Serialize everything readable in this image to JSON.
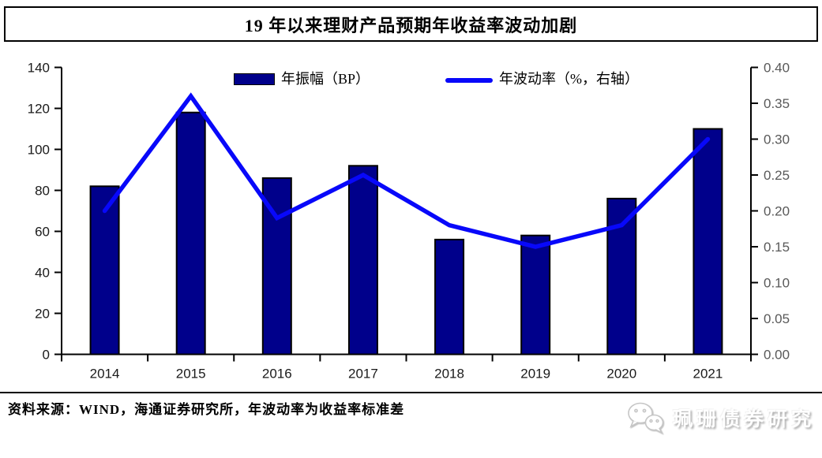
{
  "header": {
    "title": "19 年以来理财产品预期年收益率波动加剧"
  },
  "legend": {
    "bar_label": "年振幅（BP）",
    "line_label": "年波动率（%，右轴）"
  },
  "footer": {
    "source": "资料来源：WIND，海通证券研究所，年波动率为收益率标准差",
    "watermark": "珮珊债券研究",
    "watermark_icon": "wechat-icon"
  },
  "colors": {
    "bar": "#00008B",
    "bar_border": "#000000",
    "line": "#0808FA",
    "axis": "#000000",
    "left_label": "#1a1a1a",
    "right_label": "#595959"
  },
  "chart_data": {
    "type": "bar",
    "subtype": "bar+line combo, dual axis",
    "title": "19 年以来理财产品预期年收益率波动加剧",
    "categories": [
      "2014",
      "2015",
      "2016",
      "2017",
      "2018",
      "2019",
      "2020",
      "2021"
    ],
    "series": [
      {
        "name": "年振幅（BP）",
        "type": "bar",
        "axis": "left",
        "values": [
          82,
          118,
          86,
          92,
          56,
          58,
          76,
          110
        ]
      },
      {
        "name": "年波动率（%，右轴）",
        "type": "line",
        "axis": "right",
        "values": [
          0.2,
          0.36,
          0.19,
          0.25,
          0.18,
          0.15,
          0.18,
          0.3
        ]
      }
    ],
    "left_axis": {
      "min": 0,
      "max": 140,
      "step": 20,
      "ticks": [
        "0",
        "20",
        "40",
        "60",
        "80",
        "100",
        "120",
        "140"
      ]
    },
    "right_axis": {
      "min": 0,
      "max": 0.4,
      "step": 0.05,
      "ticks": [
        "0.00",
        "0.05",
        "0.10",
        "0.15",
        "0.20",
        "0.25",
        "0.30",
        "0.35",
        "0.40"
      ]
    },
    "grid": false,
    "legend_position": "top-center"
  }
}
